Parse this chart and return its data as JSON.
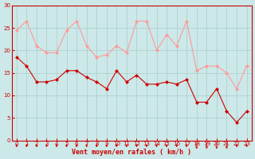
{
  "x": [
    0,
    1,
    2,
    3,
    4,
    5,
    6,
    7,
    8,
    9,
    10,
    11,
    12,
    13,
    14,
    15,
    16,
    17,
    18,
    19,
    20,
    21,
    22,
    23
  ],
  "vent_moyen": [
    18.5,
    16.5,
    13,
    13,
    13.5,
    15.5,
    15.5,
    14,
    13,
    11.5,
    15.5,
    13,
    14.5,
    12.5,
    12.5,
    13,
    12.5,
    13.5,
    8.5,
    8.5,
    11.5,
    6.5,
    4,
    6.5
  ],
  "rafales": [
    24.5,
    26.5,
    21,
    19.5,
    19.5,
    24.5,
    26.5,
    21,
    18.5,
    19,
    21,
    19.5,
    26.5,
    26.5,
    20,
    23.5,
    21,
    26.5,
    15.5,
    16.5,
    16.5,
    15,
    11.5,
    16.5
  ],
  "color_moyen": "#cc0000",
  "color_rafales": "#ff9999",
  "bg_color": "#cce8e8",
  "grid_color": "#aacccc",
  "xlabel": "Vent moyen/en rafales ( km/h )",
  "xlabel_color": "#cc0000",
  "ylabel_color": "#cc0000",
  "ylim": [
    0,
    30
  ],
  "yticks": [
    0,
    5,
    10,
    15,
    20,
    25,
    30
  ],
  "xticks": [
    0,
    1,
    2,
    3,
    4,
    5,
    6,
    7,
    8,
    9,
    10,
    11,
    12,
    13,
    14,
    15,
    16,
    17,
    18,
    19,
    20,
    21,
    22,
    23
  ],
  "spine_color": "#cc0000",
  "marker_size": 2.5,
  "line_width": 0.8
}
